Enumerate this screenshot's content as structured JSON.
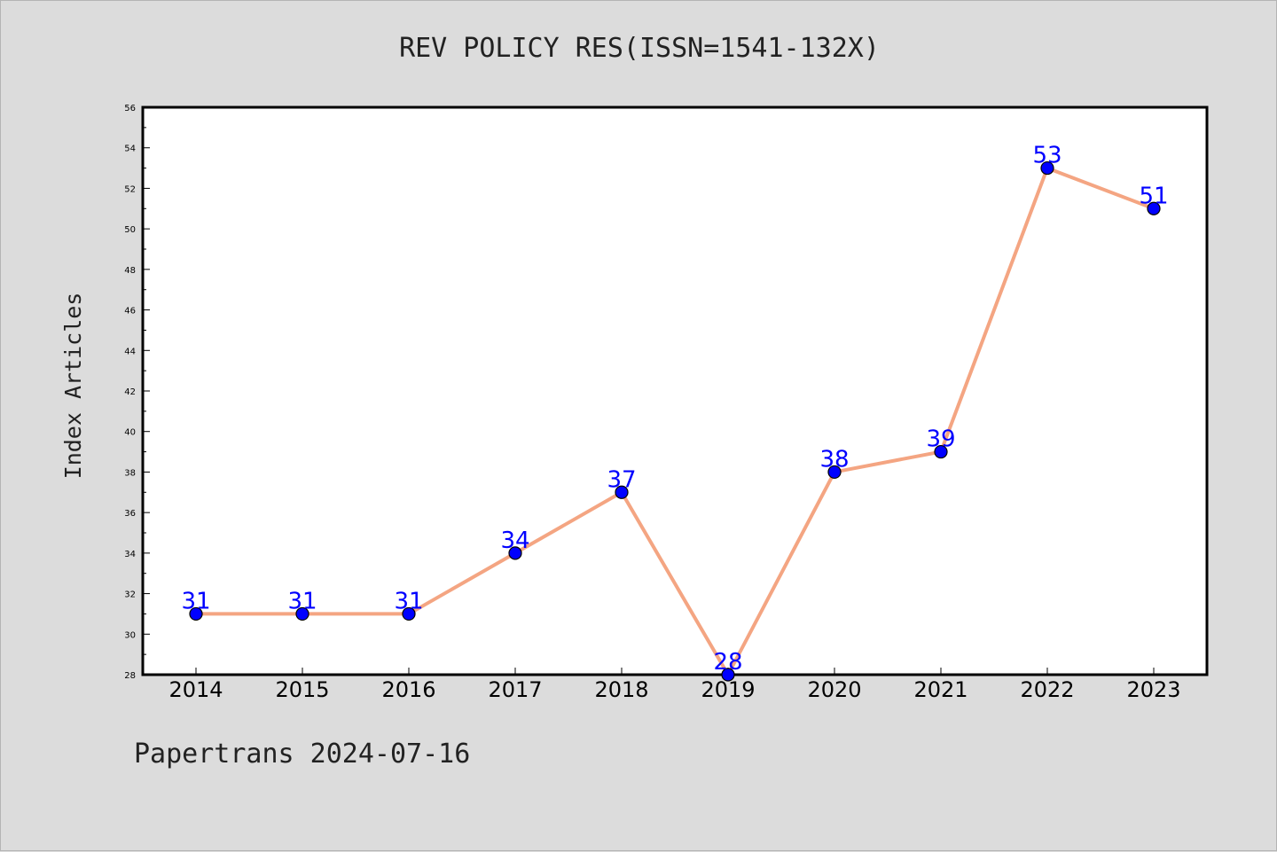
{
  "chart_data": {
    "type": "line",
    "title": "REV POLICY RES(ISSN=1541-132X)",
    "xlabel": "",
    "ylabel": "Index Articles",
    "categories": [
      "2014",
      "2015",
      "2016",
      "2017",
      "2018",
      "2019",
      "2020",
      "2021",
      "2022",
      "2023"
    ],
    "values": [
      31,
      31,
      31,
      34,
      37,
      28,
      38,
      39,
      53,
      51
    ],
    "data_labels": [
      "31",
      "31",
      "31",
      "34",
      "37",
      "28",
      "38",
      "39",
      "53",
      "51"
    ],
    "ylim": [
      28,
      56
    ],
    "yticks": [
      "28",
      "30",
      "32",
      "34",
      "36",
      "38",
      "40",
      "42",
      "44",
      "46",
      "48",
      "50",
      "52",
      "54",
      "56"
    ],
    "grid": false,
    "legend": "none",
    "colors": {
      "line": "#f4a582",
      "marker": "#0000ff",
      "marker_edge": "#000000",
      "label": "#0000ff",
      "plot_bg": "#ffffff",
      "page_bg": "#dcdcdc"
    }
  },
  "footer": "Papertrans 2024-07-16"
}
